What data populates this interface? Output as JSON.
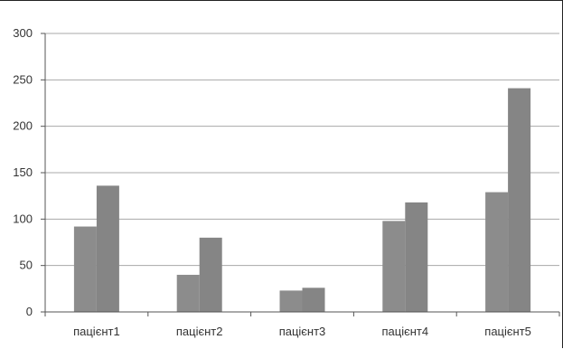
{
  "chart_data": {
    "type": "bar",
    "categories": [
      "пацієнт1",
      "пацієнт2",
      "пацієнт3",
      "пацієнт4",
      "пацієнт5"
    ],
    "series": [
      {
        "values": [
          92,
          40,
          23,
          98,
          129
        ]
      },
      {
        "values": [
          136,
          80,
          26,
          118,
          241
        ]
      }
    ],
    "ylim": [
      0,
      300
    ],
    "yticks": [
      "0",
      "50",
      "100",
      "150",
      "200",
      "250",
      "300"
    ],
    "grid": true,
    "legend": "none",
    "colors": [
      "#8c8c8c",
      "#858585"
    ],
    "title": "",
    "xlabel": "",
    "ylabel": ""
  }
}
